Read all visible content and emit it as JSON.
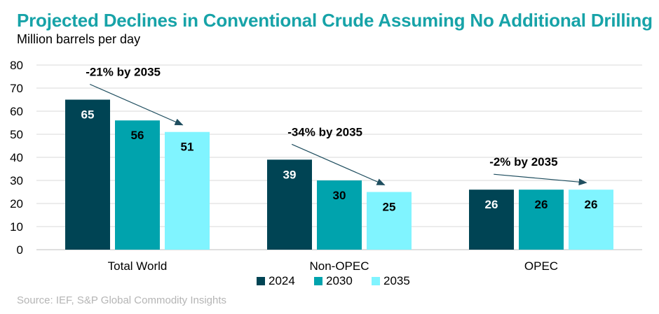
{
  "title": "Projected Declines in Conventional Crude Assuming No Additional Drilling",
  "subtitle": "Million barrels per day",
  "source": "Source: IEF, S&P Global Commodity Insights",
  "chart_data": {
    "type": "bar",
    "categories": [
      "Total World",
      "Non-OPEC",
      "OPEC"
    ],
    "series": [
      {
        "name": "2024",
        "values": [
          65,
          39,
          26
        ],
        "color": "#004454",
        "label_color": "#ffffff"
      },
      {
        "name": "2030",
        "values": [
          56,
          30,
          26
        ],
        "color": "#00a3ad",
        "label_color": "#000000"
      },
      {
        "name": "2035",
        "values": [
          51,
          25,
          26
        ],
        "color": "#80f4ff",
        "label_color": "#000000"
      }
    ],
    "ylim": [
      0,
      80
    ],
    "yticks": [
      0,
      10,
      20,
      30,
      40,
      50,
      60,
      70,
      80
    ],
    "grid": true,
    "legend": "bottom",
    "annotations": [
      {
        "text": "-21% by 2035",
        "category": 0
      },
      {
        "text": "-34% by 2035",
        "category": 1
      },
      {
        "text": "-2% by 2035",
        "category": 2
      }
    ]
  }
}
